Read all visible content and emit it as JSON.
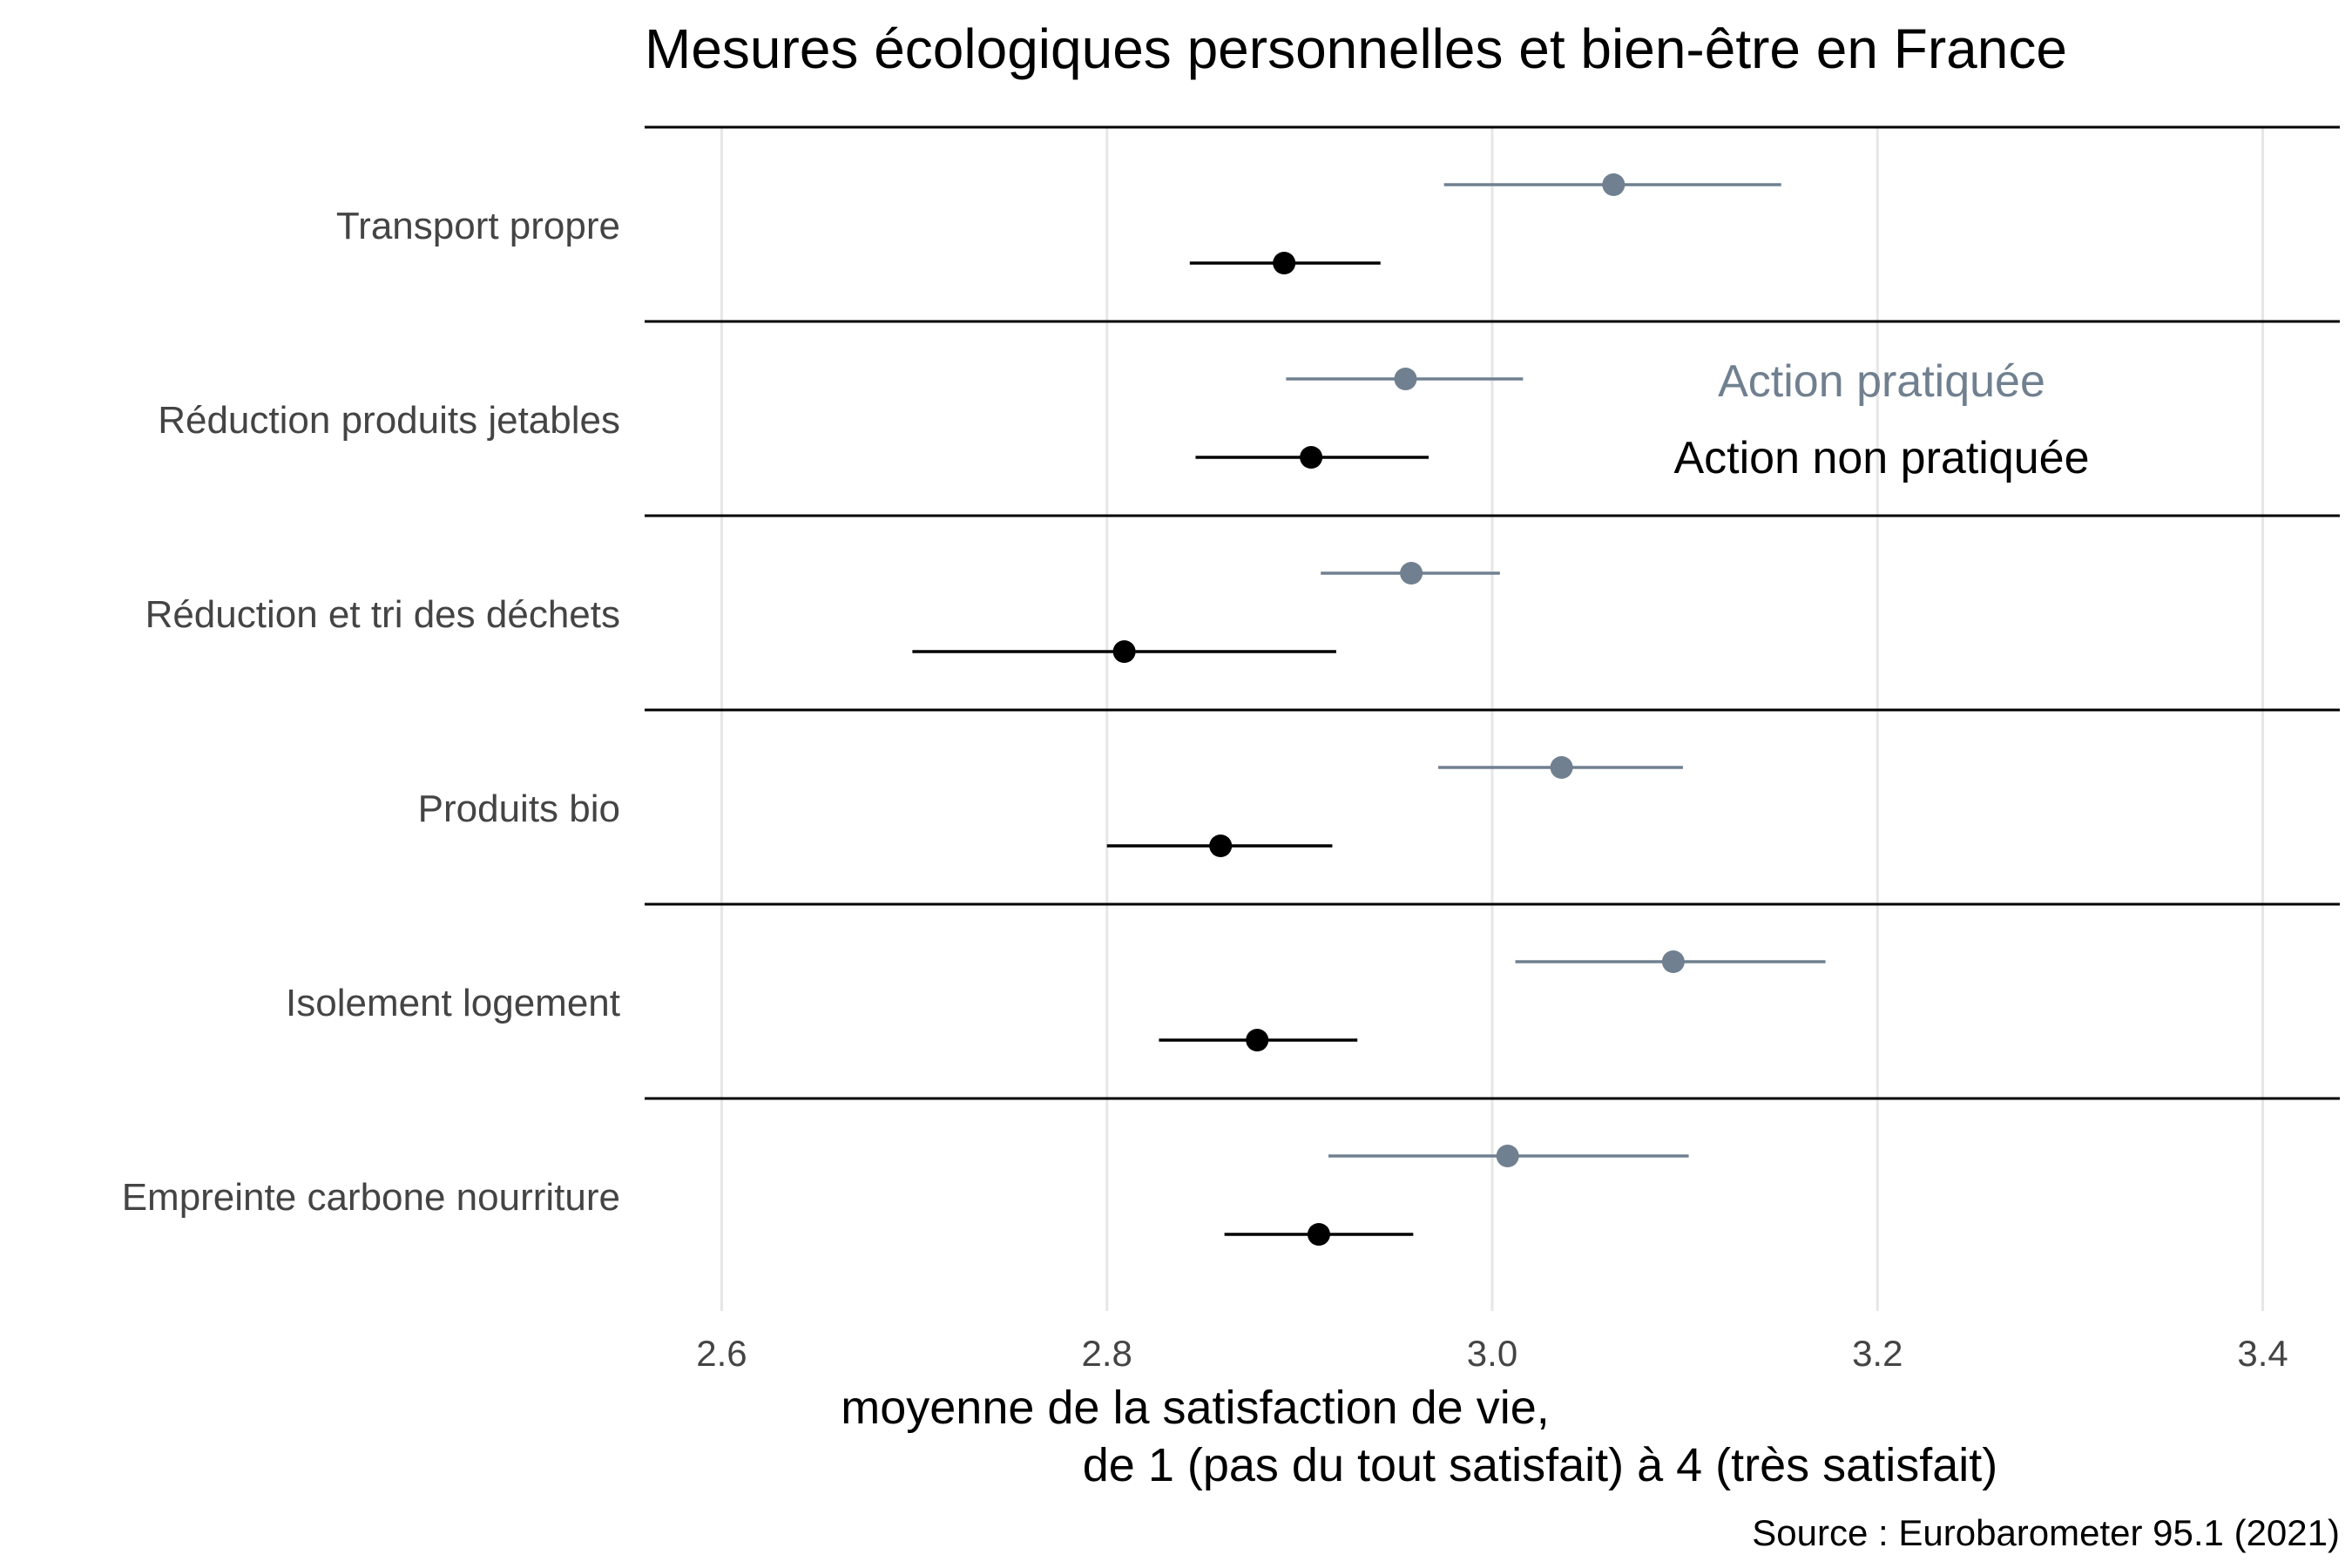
{
  "chart_data": {
    "type": "scatter",
    "title": "Mesures écologiques personnelles et bien-être en France",
    "xlabel_line1": "moyenne de la satisfaction de vie,",
    "xlabel_line2": "de 1 (pas du tout satisfait) à 4 (très satisfait)",
    "source": "Source : Eurobarometer 95.1 (2021)",
    "xlim": [
      2.56,
      3.44
    ],
    "xticks": [
      2.6,
      2.8,
      3.0,
      3.2,
      3.4
    ],
    "xtick_labels": [
      "2.6",
      "2.8",
      "3.0",
      "3.2",
      "3.4"
    ],
    "grid": true,
    "legend_placement": "inside-right",
    "categories": [
      "Transport propre",
      "Réduction produits jetables",
      "Réduction et tri des déchets",
      "Produits bio",
      "Isolement logement",
      "Empreinte carbone nourriture"
    ],
    "series": [
      {
        "name": "Action pratiquée",
        "color": "#708090",
        "mean": [
          3.063,
          2.955,
          2.958,
          3.036,
          3.094,
          3.008
        ],
        "low": [
          2.975,
          2.893,
          2.911,
          2.972,
          3.012,
          2.915
        ],
        "high": [
          3.15,
          3.016,
          3.004,
          3.099,
          3.173,
          3.102
        ]
      },
      {
        "name": "Action non pratiquée",
        "color": "#000000",
        "mean": [
          2.892,
          2.906,
          2.809,
          2.859,
          2.878,
          2.91
        ],
        "low": [
          2.843,
          2.846,
          2.699,
          2.8,
          2.827,
          2.861
        ],
        "high": [
          2.942,
          2.967,
          2.919,
          2.917,
          2.93,
          2.959
        ]
      }
    ]
  }
}
